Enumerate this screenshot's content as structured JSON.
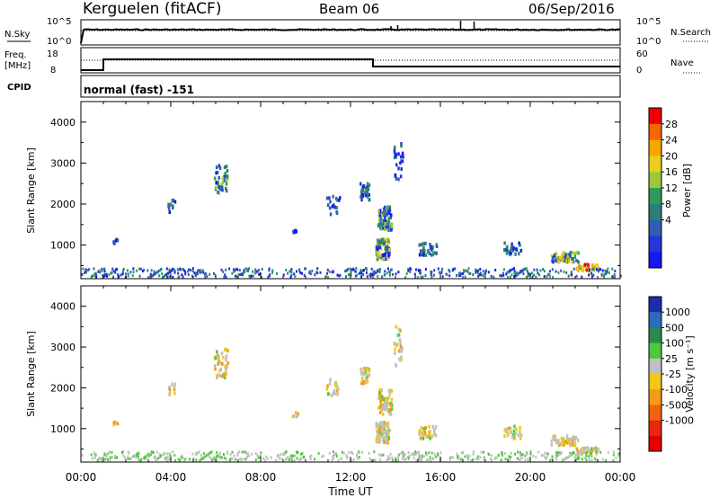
{
  "header": {
    "station": "Kerguelen (fitACF)",
    "beam": "Beam 06",
    "date": "06/Sep/2016"
  },
  "aux_panels": {
    "nsky": {
      "left_label": "N.Sky",
      "right_label": "N.Search",
      "ticks_left": [
        "10^5",
        "10^0"
      ],
      "ticks_right": [
        "10^5",
        "10^0"
      ]
    },
    "freq": {
      "left_label_1": "Freq.",
      "left_label_2": "[MHz]",
      "right_label": "Nave",
      "ticks_left": [
        "18",
        "8"
      ],
      "ticks_right": [
        "60",
        "0"
      ]
    },
    "cpid": {
      "left_label": "CPID",
      "text": "normal (fast) -151"
    }
  },
  "chart_data": [
    {
      "type": "heatmap",
      "name": "power",
      "ylabel": "Slant Range [km]",
      "yticks": [
        "4000",
        "3000",
        "2000",
        "1000"
      ],
      "ylim": [
        180,
        4500
      ],
      "xlim": [
        0,
        24
      ],
      "colorbar": {
        "label": "Power [dB]",
        "labels": [
          "28",
          "24",
          "20",
          "16",
          "12",
          "8",
          "4"
        ],
        "colors": [
          "#ee0000",
          "#f36800",
          "#f7a800",
          "#e8d020",
          "#9cc83c",
          "#2e9a5a",
          "#2e7d7a",
          "#2f5fb0",
          "#2636d8",
          "#1717ee"
        ]
      }
    },
    {
      "type": "heatmap",
      "name": "velocity",
      "ylabel": "Slant Range [km]",
      "yticks": [
        "4000",
        "3000",
        "2000",
        "1000"
      ],
      "ylim": [
        180,
        4500
      ],
      "xlim": [
        0,
        24
      ],
      "colorbar": {
        "label": "Velocity [m s⁻¹]",
        "labels": [
          "1000",
          "500",
          "100",
          "25",
          "-25",
          "-100",
          "-500",
          "-1000"
        ],
        "colors": [
          "#1c2fa8",
          "#2a6cc0",
          "#2a8a4c",
          "#4cc93a",
          "#c0c0c0",
          "#f2c71a",
          "#f29d12",
          "#f2620e",
          "#e72a0d",
          "#e50000"
        ]
      }
    }
  ],
  "x_axis": {
    "ticks": [
      "00:00",
      "04:00",
      "08:00",
      "12:00",
      "16:00",
      "20:00",
      "00:00"
    ],
    "label": "Time UT"
  }
}
